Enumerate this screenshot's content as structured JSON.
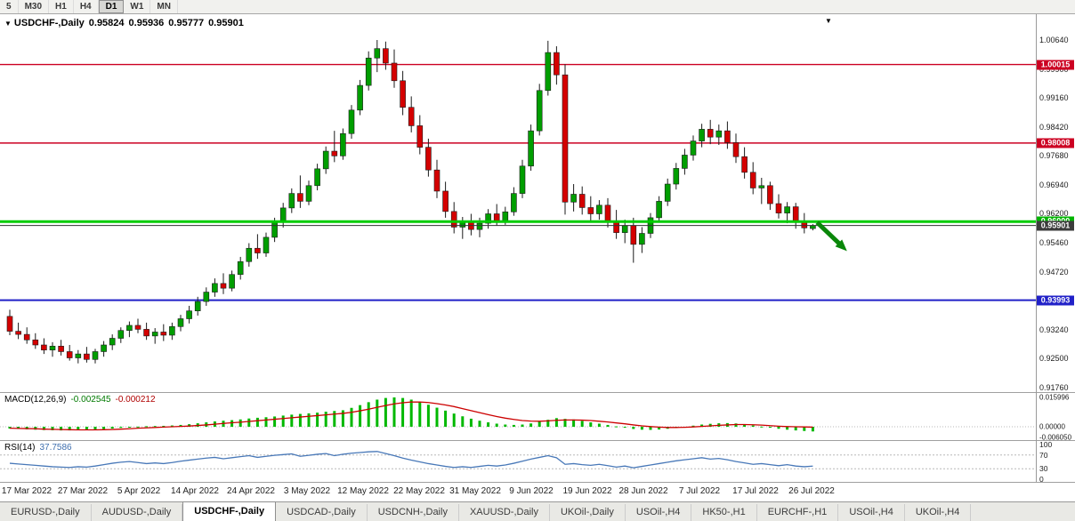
{
  "toolbar": {
    "periods": [
      "5",
      "M30",
      "H1",
      "H4",
      "D1",
      "W1",
      "MN"
    ],
    "active_period": "D1"
  },
  "chart_header": {
    "expander": "▼",
    "symbol_label": "USDCHF-,Daily",
    "open": "0.95824",
    "high": "0.95936",
    "low": "0.95777",
    "close": "0.95901",
    "shift_marker": "▼"
  },
  "price_axis": {
    "ticks": [
      "1.00640",
      "0.99900",
      "0.99160",
      "0.98420",
      "0.97680",
      "0.96940",
      "0.96200",
      "0.95460",
      "0.94720",
      "0.93980",
      "0.93240",
      "0.92500",
      "0.91760"
    ],
    "tick_values": [
      1.0064,
      0.999,
      0.9916,
      0.9842,
      0.9768,
      0.9694,
      0.962,
      0.9546,
      0.9472,
      0.9398,
      0.9324,
      0.925,
      0.9176
    ]
  },
  "chart_data": {
    "type": "candlestick",
    "symbol": "USDCHF",
    "timeframe": "Daily",
    "current_bar": {
      "open": 0.95824,
      "high": 0.95936,
      "low": 0.95777,
      "close": 0.95901
    },
    "x_dates": [
      "17 Mar 2022",
      "27 Mar 2022",
      "5 Apr 2022",
      "14 Apr 2022",
      "24 Apr 2022",
      "3 May 2022",
      "12 May 2022",
      "22 May 2022",
      "31 May 2022",
      "9 Jun 2022",
      "19 Jun 2022",
      "28 Jun 2022",
      "7 Jul 2022",
      "17 Jul 2022",
      "26 Jul 2022"
    ],
    "hlines": [
      {
        "value": 1.00015,
        "label": "1.00015",
        "color": "#cc0022",
        "width": 1.4,
        "layer": "under",
        "role": "resistance-line"
      },
      {
        "value": 0.98008,
        "label": "0.98008",
        "color": "#cc0022",
        "width": 1.4,
        "layer": "under",
        "role": "resistance-line"
      },
      {
        "value": 0.93993,
        "label": "0.93993",
        "color": "#2121c8",
        "width": 2,
        "layer": "under",
        "role": "support-line"
      },
      {
        "value": 0.96,
        "label": "0.96000",
        "color": "#00cc00",
        "width": 3,
        "layer": "over",
        "role": "key-level-line",
        "badge_color": "#00b400"
      },
      {
        "value": 0.95901,
        "label": "0.95901",
        "color": "#333333",
        "width": 1,
        "layer": "over",
        "role": "current-price-line",
        "badge_color": "#3c3c3c"
      }
    ],
    "candles": [
      [
        0.9358,
        0.9375,
        0.931,
        0.932
      ],
      [
        0.932,
        0.9342,
        0.93,
        0.9312
      ],
      [
        0.9312,
        0.933,
        0.9288,
        0.9298
      ],
      [
        0.9298,
        0.9315,
        0.9275,
        0.9285
      ],
      [
        0.9285,
        0.9302,
        0.9262,
        0.9272
      ],
      [
        0.9272,
        0.9292,
        0.9255,
        0.9282
      ],
      [
        0.9282,
        0.9298,
        0.9258,
        0.9268
      ],
      [
        0.9268,
        0.9285,
        0.9245,
        0.9252
      ],
      [
        0.9252,
        0.9272,
        0.9238,
        0.9262
      ],
      [
        0.9262,
        0.928,
        0.924,
        0.9248
      ],
      [
        0.9248,
        0.9275,
        0.9238,
        0.9268
      ],
      [
        0.9268,
        0.9295,
        0.9255,
        0.9285
      ],
      [
        0.9285,
        0.9312,
        0.9272,
        0.9302
      ],
      [
        0.9302,
        0.933,
        0.929,
        0.9322
      ],
      [
        0.9322,
        0.9345,
        0.9305,
        0.9335
      ],
      [
        0.9335,
        0.9352,
        0.9315,
        0.9325
      ],
      [
        0.9325,
        0.9342,
        0.9298,
        0.9308
      ],
      [
        0.9308,
        0.9328,
        0.9288,
        0.9318
      ],
      [
        0.9318,
        0.9338,
        0.9295,
        0.931
      ],
      [
        0.931,
        0.9342,
        0.9298,
        0.9332
      ],
      [
        0.9332,
        0.9362,
        0.932,
        0.9352
      ],
      [
        0.9352,
        0.9385,
        0.934,
        0.9372
      ],
      [
        0.9372,
        0.9408,
        0.936,
        0.9396
      ],
      [
        0.9396,
        0.9432,
        0.9385,
        0.942
      ],
      [
        0.942,
        0.9455,
        0.9408,
        0.9442
      ],
      [
        0.9442,
        0.9468,
        0.9415,
        0.943
      ],
      [
        0.943,
        0.9475,
        0.9422,
        0.9465
      ],
      [
        0.9465,
        0.951,
        0.9452,
        0.9498
      ],
      [
        0.9498,
        0.9545,
        0.9485,
        0.9532
      ],
      [
        0.9532,
        0.9568,
        0.9505,
        0.952
      ],
      [
        0.952,
        0.9572,
        0.951,
        0.956
      ],
      [
        0.956,
        0.961,
        0.9548,
        0.9598
      ],
      [
        0.9598,
        0.9648,
        0.9585,
        0.9635
      ],
      [
        0.9635,
        0.9685,
        0.9622,
        0.9672
      ],
      [
        0.9672,
        0.9718,
        0.9635,
        0.9652
      ],
      [
        0.9652,
        0.9705,
        0.9642,
        0.9692
      ],
      [
        0.9692,
        0.9748,
        0.968,
        0.9735
      ],
      [
        0.9735,
        0.9792,
        0.9722,
        0.978
      ],
      [
        0.978,
        0.9832,
        0.9752,
        0.9768
      ],
      [
        0.9768,
        0.9838,
        0.9758,
        0.9825
      ],
      [
        0.9825,
        0.9898,
        0.9812,
        0.9885
      ],
      [
        0.9885,
        0.9962,
        0.9872,
        0.9948
      ],
      [
        0.9948,
        1.0035,
        0.9935,
        1.0018
      ],
      [
        1.0018,
        1.0064,
        0.9982,
        1.0042
      ],
      [
        1.0042,
        1.006,
        0.9988,
        1.0005
      ],
      [
        1.0005,
        1.004,
        0.9942,
        0.996
      ],
      [
        0.996,
        0.9985,
        0.9872,
        0.9892
      ],
      [
        0.9892,
        0.992,
        0.9828,
        0.9845
      ],
      [
        0.9845,
        0.9872,
        0.9772,
        0.979
      ],
      [
        0.979,
        0.9812,
        0.9715,
        0.9732
      ],
      [
        0.9732,
        0.9758,
        0.966,
        0.9678
      ],
      [
        0.9678,
        0.9702,
        0.961,
        0.9626
      ],
      [
        0.9626,
        0.965,
        0.957,
        0.9586
      ],
      [
        0.9586,
        0.9612,
        0.9556,
        0.9598
      ],
      [
        0.9598,
        0.962,
        0.9565,
        0.958
      ],
      [
        0.958,
        0.961,
        0.956,
        0.9596
      ],
      [
        0.9596,
        0.9632,
        0.9582,
        0.962
      ],
      [
        0.962,
        0.9645,
        0.959,
        0.9602
      ],
      [
        0.9602,
        0.9638,
        0.9592,
        0.9625
      ],
      [
        0.9625,
        0.9688,
        0.9615,
        0.9672
      ],
      [
        0.9672,
        0.9758,
        0.966,
        0.9742
      ],
      [
        0.9742,
        0.9848,
        0.973,
        0.9832
      ],
      [
        0.9832,
        0.9952,
        0.982,
        0.9935
      ],
      [
        0.9935,
        1.0062,
        0.9922,
        1.0032
      ],
      [
        1.0032,
        1.0048,
        0.995,
        0.9975
      ],
      [
        0.9975,
        1.0002,
        0.9618,
        0.965
      ],
      [
        0.965,
        0.9696,
        0.9626,
        0.967
      ],
      [
        0.967,
        0.969,
        0.9618,
        0.9636
      ],
      [
        0.9636,
        0.9665,
        0.9602,
        0.962
      ],
      [
        0.962,
        0.9655,
        0.9605,
        0.9642
      ],
      [
        0.9642,
        0.966,
        0.9585,
        0.9602
      ],
      [
        0.9602,
        0.963,
        0.9556,
        0.9572
      ],
      [
        0.9572,
        0.9605,
        0.9545,
        0.959
      ],
      [
        0.959,
        0.961,
        0.9495,
        0.9542
      ],
      [
        0.9542,
        0.9586,
        0.952,
        0.957
      ],
      [
        0.957,
        0.9622,
        0.9558,
        0.961
      ],
      [
        0.961,
        0.9665,
        0.9598,
        0.9652
      ],
      [
        0.9652,
        0.971,
        0.964,
        0.9696
      ],
      [
        0.9696,
        0.975,
        0.9682,
        0.9736
      ],
      [
        0.9736,
        0.9786,
        0.972,
        0.977
      ],
      [
        0.977,
        0.982,
        0.9756,
        0.9806
      ],
      [
        0.9806,
        0.985,
        0.979,
        0.9836
      ],
      [
        0.9836,
        0.986,
        0.9798,
        0.9816
      ],
      [
        0.9816,
        0.9848,
        0.9796,
        0.9832
      ],
      [
        0.9832,
        0.9856,
        0.9786,
        0.9802
      ],
      [
        0.9802,
        0.9825,
        0.975,
        0.9766
      ],
      [
        0.9766,
        0.979,
        0.971,
        0.9726
      ],
      [
        0.9726,
        0.9752,
        0.967,
        0.9686
      ],
      [
        0.9686,
        0.9712,
        0.9645,
        0.9692
      ],
      [
        0.9692,
        0.9702,
        0.963,
        0.9646
      ],
      [
        0.9646,
        0.967,
        0.9608,
        0.9622
      ],
      [
        0.9622,
        0.965,
        0.9596,
        0.9638
      ],
      [
        0.9638,
        0.9648,
        0.9582,
        0.9598
      ],
      [
        0.9598,
        0.9622,
        0.957,
        0.9584
      ],
      [
        0.95824,
        0.95936,
        0.95777,
        0.95901
      ]
    ],
    "indicators": [
      {
        "name": "MACD",
        "label": "MACD(12,26,9)",
        "values": [
          "-0.002545",
          "-0.000212"
        ],
        "axis_labels": [
          [
            "0.015996",
            0.016
          ],
          [
            "0.00000",
            0
          ],
          [
            "-0.006050",
            -0.00605
          ]
        ],
        "histogram": [
          -0.001,
          -0.0012,
          -0.0014,
          -0.0016,
          -0.0018,
          -0.0019,
          -0.002,
          -0.002,
          -0.0019,
          -0.0018,
          -0.0016,
          -0.0013,
          -0.001,
          -0.0006,
          -0.0002,
          0.0001,
          0.0003,
          0.0004,
          0.0005,
          0.0007,
          0.001,
          0.0014,
          0.0019,
          0.0024,
          0.0029,
          0.0033,
          0.0036,
          0.004,
          0.0045,
          0.0049,
          0.0052,
          0.0056,
          0.0061,
          0.0066,
          0.007,
          0.0073,
          0.0077,
          0.0082,
          0.0086,
          0.009,
          0.0103,
          0.0118,
          0.0134,
          0.0148,
          0.0157,
          0.016,
          0.0157,
          0.0148,
          0.0135,
          0.012,
          0.0104,
          0.0088,
          0.0072,
          0.0057,
          0.0044,
          0.0033,
          0.0024,
          0.0017,
          0.0012,
          0.001,
          0.0012,
          0.0018,
          0.0027,
          0.0038,
          0.0047,
          0.0043,
          0.004,
          0.0032,
          0.0024,
          0.0017,
          0.001,
          0.0002,
          -0.0005,
          -0.0012,
          -0.0016,
          -0.0017,
          -0.0015,
          -0.0011,
          -0.0006,
          0.0,
          0.0006,
          0.0012,
          0.0016,
          0.0019,
          0.002,
          0.0018,
          0.0013,
          0.0007,
          0.0001,
          -0.0005,
          -0.0011,
          -0.0016,
          -0.002,
          -0.0023,
          -0.00255
        ],
        "signal": [
          -0.0008,
          -0.0009,
          -0.001,
          -0.0011,
          -0.0013,
          -0.0014,
          -0.0015,
          -0.0016,
          -0.0017,
          -0.0017,
          -0.0017,
          -0.0016,
          -0.0015,
          -0.0013,
          -0.0011,
          -0.0008,
          -0.0006,
          -0.0004,
          -0.0002,
          0.0,
          0.0002,
          0.0004,
          0.0007,
          0.001,
          0.0014,
          0.0018,
          0.0022,
          0.0025,
          0.0029,
          0.0033,
          0.0037,
          0.0041,
          0.0045,
          0.0049,
          0.0053,
          0.0057,
          0.0061,
          0.0065,
          0.0069,
          0.0073,
          0.0079,
          0.0087,
          0.0096,
          0.0106,
          0.0116,
          0.0125,
          0.0131,
          0.0135,
          0.0135,
          0.0132,
          0.0126,
          0.0119,
          0.011,
          0.0099,
          0.0088,
          0.0077,
          0.0066,
          0.0056,
          0.0047,
          0.004,
          0.0034,
          0.0031,
          0.003,
          0.0032,
          0.0035,
          0.0037,
          0.0037,
          0.0036,
          0.0034,
          0.003,
          0.0026,
          0.0021,
          0.0016,
          0.001,
          0.0005,
          0.0001,
          -0.0002,
          -0.0004,
          -0.0004,
          -0.0003,
          -0.0001,
          0.0002,
          0.0005,
          0.0008,
          0.001,
          0.0012,
          0.0012,
          0.0011,
          0.0009,
          0.0006,
          0.0003,
          0.0001,
          0.0,
          -0.0001,
          -0.000212
        ]
      },
      {
        "name": "RSI",
        "label": "RSI(14)",
        "value": "37.7586",
        "levels": [
          70,
          30
        ],
        "axis_labels": [
          [
            "100",
            100
          ],
          [
            "70",
            70
          ],
          [
            "30",
            30
          ],
          [
            "0",
            0
          ]
        ],
        "series": [
          46,
          44,
          42,
          40,
          38,
          36,
          35,
          34,
          36,
          35,
          38,
          42,
          46,
          49,
          51,
          48,
          45,
          47,
          45,
          48,
          52,
          55,
          58,
          61,
          63,
          59,
          62,
          65,
          68,
          63,
          66,
          69,
          71,
          73,
          66,
          69,
          72,
          74,
          68,
          72,
          75,
          77,
          79,
          80,
          74,
          68,
          61,
          55,
          50,
          45,
          41,
          37,
          34,
          36,
          34,
          37,
          40,
          38,
          41,
          46,
          52,
          58,
          63,
          68,
          62,
          43,
          45,
          42,
          40,
          43,
          39,
          35,
          38,
          33,
          37,
          41,
          45,
          49,
          53,
          56,
          59,
          62,
          58,
          60,
          56,
          51,
          47,
          43,
          45,
          42,
          39,
          42,
          38,
          36,
          37.7586
        ]
      }
    ],
    "annotations": [
      {
        "type": "arrow",
        "direction": "down-right",
        "color": "#0a870a",
        "from": {
          "bar": 94.5,
          "price": 0.9598
        },
        "to": {
          "bar": 98,
          "price": 0.9525
        }
      }
    ]
  },
  "colors": {
    "candle_up": "#009e00",
    "candle_down": "#d40000",
    "candle_outline": "#1b1b1b",
    "macd_histogram": "#00b800",
    "macd_signal": "#cc0000",
    "rsi_line": "#4878b8",
    "indicator_level_dotted": "#b8b8b8"
  },
  "tabs": {
    "items": [
      "EURUSD-,Daily",
      "AUDUSD-,Daily",
      "USDCHF-,Daily",
      "USDCAD-,Daily",
      "USDCNH-,Daily",
      "XAUUSD-,Daily",
      "UKOil-,Daily",
      "USOil-,H4",
      "HK50-,H1",
      "EURCHF-,H1",
      "USOil-,H4",
      "UKOil-,H4"
    ],
    "active_index": 2
  }
}
